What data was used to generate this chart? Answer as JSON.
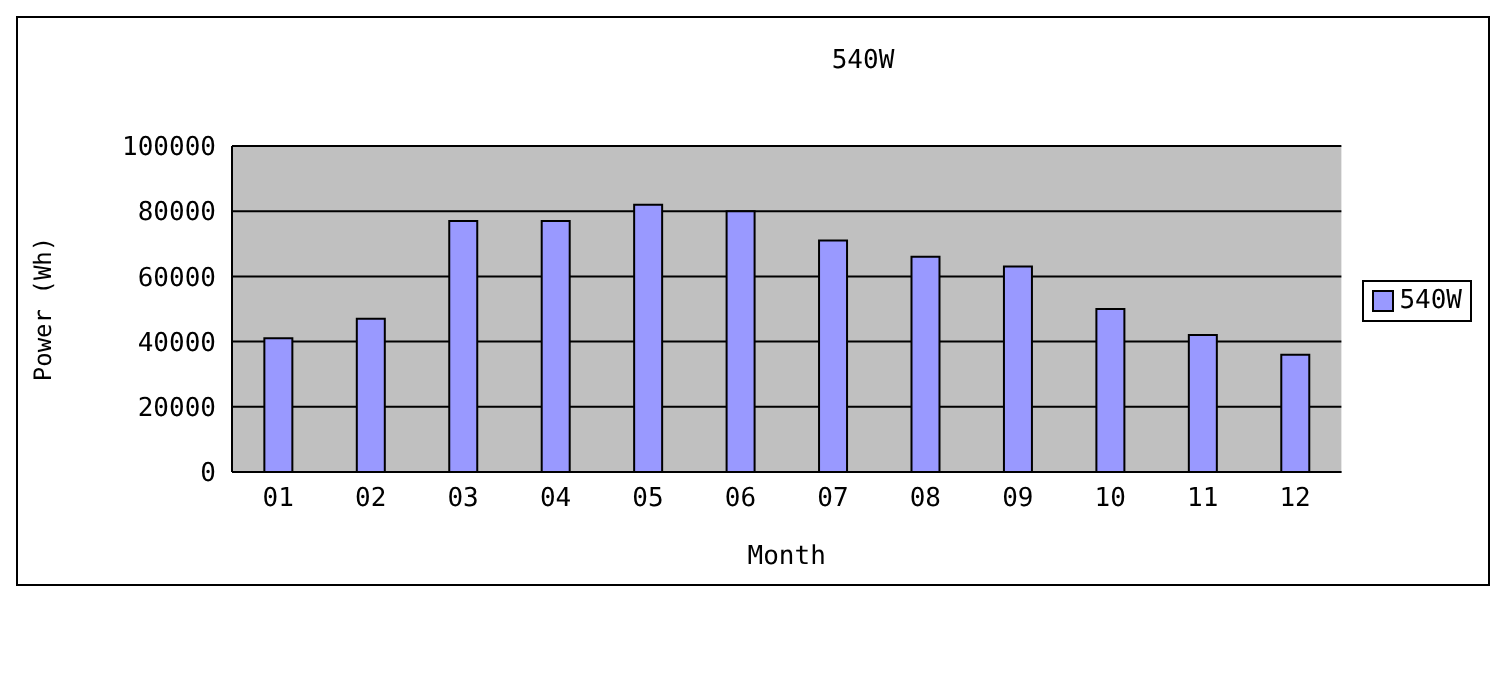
{
  "chart_data": {
    "type": "bar",
    "title": "540W",
    "xlabel": "Month",
    "ylabel": "Power (Wh)",
    "categories": [
      "01",
      "02",
      "03",
      "04",
      "05",
      "06",
      "07",
      "08",
      "09",
      "10",
      "11",
      "12"
    ],
    "series": [
      {
        "name": "540W",
        "color": "#9999ff",
        "values": [
          41000,
          47000,
          77000,
          77000,
          82000,
          80000,
          71000,
          66000,
          63000,
          50000,
          42000,
          36000
        ]
      }
    ],
    "ylim": [
      0,
      100000
    ],
    "yticks": [
      0,
      20000,
      40000,
      60000,
      80000,
      100000
    ],
    "grid": "y",
    "legend": "right"
  }
}
